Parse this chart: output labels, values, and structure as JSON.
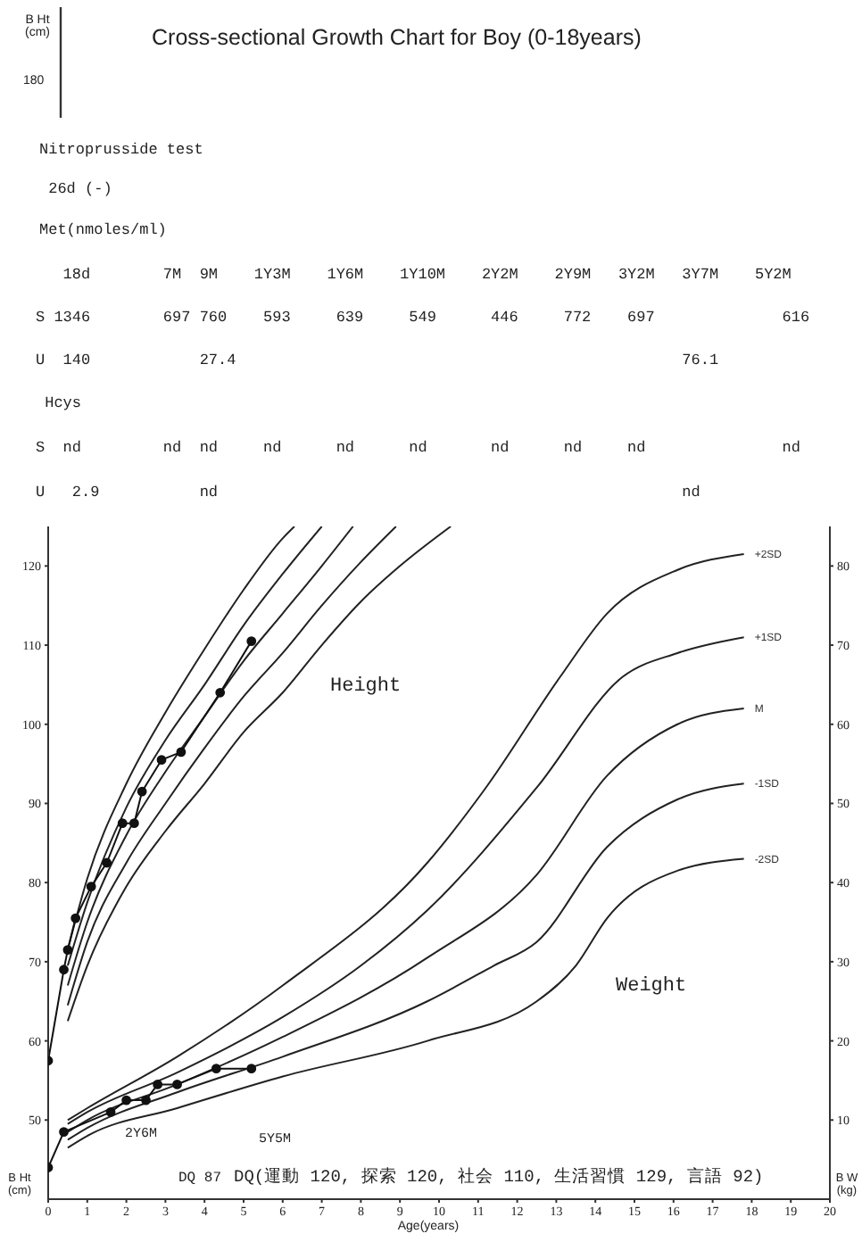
{
  "chart_data": {
    "type": "line",
    "title": "Cross-sectional Growth Chart  for Boy (0-18years)",
    "xlabel": "Age(years)",
    "ylabel": "B Ht (cm)",
    "y2label": "B W (kg)",
    "xlim": [
      0,
      20
    ],
    "xticks": [
      0,
      1,
      2,
      3,
      4,
      5,
      6,
      7,
      8,
      9,
      10,
      11,
      12,
      13,
      14,
      15,
      16,
      17,
      18,
      19,
      20
    ],
    "ylim": [
      40,
      125
    ],
    "yticks": [
      50,
      60,
      70,
      80,
      90,
      100,
      110,
      120
    ],
    "y2lim": [
      0,
      85
    ],
    "y2ticks": [
      10,
      20,
      30,
      40,
      50,
      60,
      70,
      80
    ],
    "line_style": "solid",
    "series": [
      {
        "color": "#222222",
        "marker": "none",
        "x": [
          0.5,
          1,
          2,
          3,
          4,
          5,
          6,
          6.3
        ],
        "values": [
          71.5,
          80.5,
          92.5,
          101.5,
          109.5,
          117,
          123.5,
          125
        ]
      },
      {
        "color": "#222222",
        "marker": "none",
        "x": [
          0.5,
          1,
          2,
          3,
          4,
          5,
          6,
          7
        ],
        "values": [
          69.5,
          77.5,
          89.5,
          98,
          105,
          112.5,
          119,
          125
        ]
      },
      {
        "color": "#222222",
        "marker": "none",
        "x": [
          0.5,
          1,
          2,
          3,
          4,
          5,
          6,
          7,
          7.8
        ],
        "values": [
          67,
          75,
          86,
          94,
          101,
          108,
          114,
          120,
          125
        ]
      },
      {
        "color": "#222222",
        "marker": "none",
        "x": [
          0.5,
          1,
          2,
          3,
          4,
          5,
          6,
          7,
          8,
          8.9
        ],
        "values": [
          64.5,
          72.5,
          82.5,
          90,
          97,
          103.5,
          109,
          115,
          120.5,
          125
        ]
      },
      {
        "color": "#222222",
        "marker": "none",
        "x": [
          0.5,
          1,
          2,
          3,
          4,
          5,
          6,
          7,
          8,
          9,
          10.3
        ],
        "values": [
          62.5,
          69.5,
          79.5,
          86.5,
          92.5,
          99,
          104,
          110,
          115.5,
          120,
          125
        ]
      },
      {
        "color": "#111111",
        "marker": "circle",
        "x": [
          0,
          0.4,
          0.5,
          0.7,
          1.1,
          1.5,
          1.9,
          2.2,
          2.4,
          2.9,
          3.4,
          4.4,
          5.2
        ],
        "values": [
          57.5,
          69,
          71.5,
          75.5,
          79.5,
          82.5,
          87.5,
          87.5,
          91.5,
          95.5,
          96.5,
          104,
          110.5
        ]
      },
      {
        "name": "+2SD",
        "axis": "y2",
        "color": "#222222",
        "marker": "none",
        "x": [
          0.5,
          1,
          3.3,
          6,
          9.7,
          11.2,
          13.1,
          14.3,
          16.1,
          17.8
        ],
        "values": [
          10,
          11.5,
          18,
          27,
          42.5,
          52,
          66,
          74,
          79.5,
          81.5
        ]
      },
      {
        "name": "+1SD",
        "axis": "y2",
        "color": "#222222",
        "marker": "none",
        "x": [
          0.5,
          1,
          3.3,
          6,
          8,
          9.7,
          12.5,
          14.7,
          16.1,
          17.8
        ],
        "values": [
          9.5,
          11,
          16,
          23,
          29.5,
          36.5,
          52,
          66,
          69,
          71
        ]
      },
      {
        "name": "M",
        "axis": "y2",
        "color": "#222222",
        "marker": "none",
        "x": [
          0.5,
          1,
          3.3,
          6,
          9.7,
          12.5,
          14.3,
          16.1,
          17.8
        ],
        "values": [
          8.5,
          10,
          14.5,
          20.5,
          30.5,
          41,
          53.5,
          60,
          62
        ]
      },
      {
        "name": "-1SD",
        "axis": "y2",
        "color": "#222222",
        "marker": "none",
        "x": [
          0.5,
          1,
          3.3,
          6,
          9.7,
          11.4,
          12.5,
          14.3,
          16.1,
          17.8
        ],
        "values": [
          7.5,
          9,
          13.5,
          18,
          25,
          29.5,
          32.5,
          44.5,
          50.5,
          52.5
        ]
      },
      {
        "name": "-2SD",
        "axis": "y2",
        "color": "#222222",
        "marker": "none",
        "x": [
          0.5,
          1,
          3.3,
          6,
          9.7,
          12.5,
          13.5,
          14.3,
          16.1,
          17.8
        ],
        "values": [
          6.5,
          8,
          11.5,
          15.5,
          20,
          25,
          29.5,
          35.5,
          41.5,
          43
        ]
      },
      {
        "axis": "y2",
        "color": "#111111",
        "marker": "circle",
        "x": [
          0,
          0.4,
          1.6,
          2,
          2.5,
          2.8,
          3.3,
          4.3,
          5.2
        ],
        "values": [
          4,
          8.5,
          11,
          12.5,
          12.5,
          14.5,
          14.5,
          16.5,
          16.5
        ]
      }
    ],
    "annotations": [
      "B Ht (cm)",
      "180",
      "Nitroprusside test",
      " 26d (-)",
      "Met(nmoles/ml)",
      "   18d        7M  9M    1Y3M    1Y6M    1Y10M    2Y2M    2Y9M   3Y2M   3Y7M    5Y2M",
      "S 1346        697 760    593     639     549      446     772    697              616",
      "U  140            27.4                                                 76.1",
      " Hcys",
      "S  nd         nd  nd     nd      nd      nd       nd      nd     nd               nd",
      "U   2.9           nd                                                   nd",
      "Height",
      "Weight",
      "2Y6M",
      "5Y5M",
      "DQ 87",
      "DQ(運動 120, 探索 120, 社会 110, 生活習慣 129, 言語 92)"
    ]
  }
}
